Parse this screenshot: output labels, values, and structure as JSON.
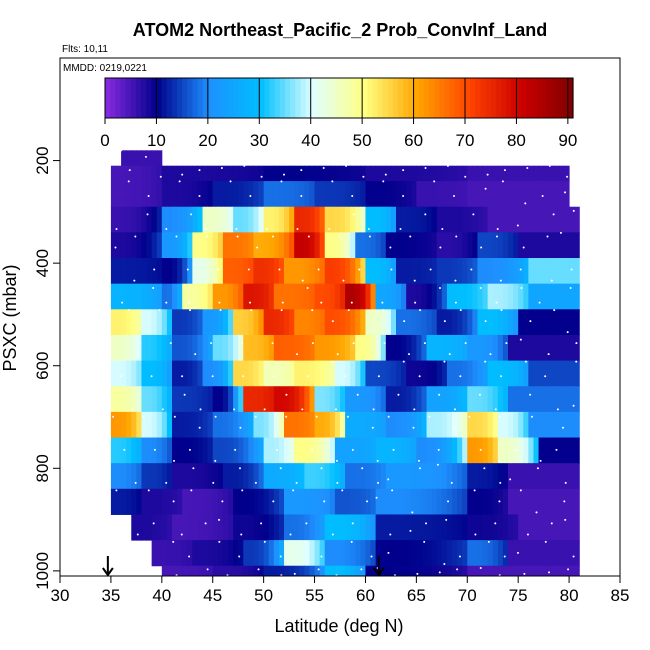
{
  "chart_data": {
    "type": "heatmap",
    "title": "ATOM2 Northeast_Pacific_2 Prob_ConvInf_Land",
    "annotations": [
      "Flts: 10,11",
      "MMDD: 0219,0221"
    ],
    "xlabel": "Latitude (deg N)",
    "ylabel": "PSXC (mbar)",
    "xlim": [
      30,
      85
    ],
    "ylim": [
      1010,
      0
    ],
    "x_ticks": [
      "30",
      "35",
      "40",
      "45",
      "50",
      "55",
      "60",
      "65",
      "70",
      "75",
      "80",
      "85"
    ],
    "y_ticks": [
      "200",
      "400",
      "600",
      "800",
      "1000"
    ],
    "colorbar": {
      "range": [
        0,
        91
      ],
      "ticks": [
        "0",
        "10",
        "20",
        "30",
        "40",
        "50",
        "60",
        "70",
        "80",
        "90"
      ],
      "colors": [
        "#8a2be2",
        "#00008b",
        "#1e90ff",
        "#00bfff",
        "#e0ffff",
        "#ffff80",
        "#ffa500",
        "#ff4500",
        "#cc0000",
        "#800000"
      ]
    },
    "arrow_markers_lat": [
      34.7,
      61.3
    ],
    "pressure_levels": [
      180,
      210,
      240,
      290,
      340,
      390,
      440,
      490,
      540,
      590,
      640,
      690,
      740,
      790,
      840,
      890,
      940,
      990
    ],
    "rows": [
      {
        "p": 180,
        "segments": [
          [
            36,
            40,
            6
          ]
        ]
      },
      {
        "p": 210,
        "segments": [
          [
            35,
            40,
            5
          ],
          [
            40,
            50,
            8
          ],
          [
            50,
            60,
            10
          ],
          [
            60,
            70,
            8
          ],
          [
            70,
            80,
            6
          ]
        ]
      },
      {
        "p": 240,
        "segments": [
          [
            35,
            40,
            5
          ],
          [
            40,
            45,
            8
          ],
          [
            45,
            50,
            12
          ],
          [
            50,
            55,
            18
          ],
          [
            55,
            60,
            14
          ],
          [
            60,
            65,
            10
          ],
          [
            65,
            70,
            6
          ],
          [
            70,
            80,
            5
          ]
        ]
      },
      {
        "p": 290,
        "segments": [
          [
            35,
            40,
            6
          ],
          [
            40,
            44,
            20
          ],
          [
            44,
            47,
            45
          ],
          [
            47,
            50,
            35
          ],
          [
            50,
            53,
            52
          ],
          [
            53,
            56,
            75
          ],
          [
            56,
            60,
            55
          ],
          [
            60,
            63,
            30
          ],
          [
            63,
            67,
            12
          ],
          [
            67,
            72,
            8
          ],
          [
            72,
            81,
            5
          ]
        ]
      },
      {
        "p": 340,
        "segments": [
          [
            35,
            40,
            8
          ],
          [
            40,
            43,
            22
          ],
          [
            43,
            46,
            50
          ],
          [
            46,
            49,
            66
          ],
          [
            49,
            53,
            60
          ],
          [
            53,
            56,
            82
          ],
          [
            56,
            59,
            50
          ],
          [
            59,
            62,
            18
          ],
          [
            62,
            67,
            10
          ],
          [
            67,
            71,
            7
          ],
          [
            71,
            75,
            15
          ],
          [
            75,
            81,
            8
          ]
        ]
      },
      {
        "p": 390,
        "segments": [
          [
            35,
            40,
            12
          ],
          [
            40,
            43,
            10
          ],
          [
            43,
            46,
            42
          ],
          [
            46,
            49,
            68
          ],
          [
            49,
            52,
            74
          ],
          [
            52,
            56,
            62
          ],
          [
            56,
            60,
            72
          ],
          [
            60,
            63,
            30
          ],
          [
            63,
            67,
            12
          ],
          [
            67,
            71,
            14
          ],
          [
            71,
            76,
            20
          ],
          [
            76,
            81,
            35
          ]
        ]
      },
      {
        "p": 440,
        "segments": [
          [
            35,
            40,
            28
          ],
          [
            40,
            42,
            18
          ],
          [
            42,
            45,
            48
          ],
          [
            45,
            48,
            62
          ],
          [
            48,
            51,
            78
          ],
          [
            51,
            55,
            66
          ],
          [
            55,
            58,
            70
          ],
          [
            58,
            61,
            85
          ],
          [
            61,
            64,
            25
          ],
          [
            64,
            68,
            8
          ],
          [
            68,
            72,
            30
          ],
          [
            72,
            76,
            38
          ],
          [
            76,
            81,
            25
          ]
        ]
      },
      {
        "p": 490,
        "segments": [
          [
            35,
            38,
            52
          ],
          [
            38,
            41,
            40
          ],
          [
            41,
            44,
            14
          ],
          [
            44,
            47,
            22
          ],
          [
            47,
            50,
            56
          ],
          [
            50,
            53,
            75
          ],
          [
            53,
            56,
            64
          ],
          [
            56,
            60,
            70
          ],
          [
            60,
            63,
            45
          ],
          [
            63,
            67,
            18
          ],
          [
            67,
            71,
            12
          ],
          [
            71,
            75,
            30
          ],
          [
            75,
            81,
            10
          ]
        ]
      },
      {
        "p": 540,
        "segments": [
          [
            35,
            38,
            45
          ],
          [
            38,
            41,
            32
          ],
          [
            41,
            45,
            16
          ],
          [
            45,
            48,
            35
          ],
          [
            48,
            51,
            58
          ],
          [
            51,
            55,
            68
          ],
          [
            55,
            59,
            62
          ],
          [
            59,
            62,
            50
          ],
          [
            62,
            66,
            10
          ],
          [
            66,
            70,
            28
          ],
          [
            70,
            74,
            22
          ],
          [
            74,
            81,
            8
          ]
        ]
      },
      {
        "p": 590,
        "segments": [
          [
            35,
            38,
            40
          ],
          [
            38,
            41,
            30
          ],
          [
            41,
            44,
            12
          ],
          [
            44,
            47,
            20
          ],
          [
            47,
            50,
            55
          ],
          [
            50,
            53,
            46
          ],
          [
            53,
            57,
            52
          ],
          [
            57,
            60,
            40
          ],
          [
            60,
            64,
            15
          ],
          [
            64,
            68,
            9
          ],
          [
            68,
            72,
            18
          ],
          [
            72,
            76,
            30
          ],
          [
            76,
            81,
            15
          ]
        ]
      },
      {
        "p": 640,
        "segments": [
          [
            35,
            38,
            48
          ],
          [
            38,
            41,
            35
          ],
          [
            41,
            45,
            14
          ],
          [
            45,
            48,
            10
          ],
          [
            48,
            51,
            75
          ],
          [
            51,
            55,
            80
          ],
          [
            55,
            58,
            36
          ],
          [
            58,
            62,
            22
          ],
          [
            62,
            66,
            12
          ],
          [
            66,
            70,
            24
          ],
          [
            70,
            74,
            35
          ],
          [
            74,
            81,
            18
          ]
        ]
      },
      {
        "p": 690,
        "segments": [
          [
            35,
            38,
            62
          ],
          [
            38,
            41,
            40
          ],
          [
            41,
            45,
            12
          ],
          [
            45,
            49,
            18
          ],
          [
            49,
            52,
            36
          ],
          [
            52,
            55,
            66
          ],
          [
            55,
            58,
            60
          ],
          [
            58,
            62,
            26
          ],
          [
            62,
            66,
            20
          ],
          [
            66,
            70,
            38
          ],
          [
            70,
            73,
            55
          ],
          [
            73,
            76,
            40
          ],
          [
            76,
            81,
            20
          ]
        ]
      },
      {
        "p": 740,
        "segments": [
          [
            35,
            38,
            32
          ],
          [
            38,
            41,
            20
          ],
          [
            41,
            45,
            10
          ],
          [
            45,
            50,
            15
          ],
          [
            50,
            53,
            38
          ],
          [
            53,
            57,
            50
          ],
          [
            57,
            61,
            24
          ],
          [
            61,
            65,
            28
          ],
          [
            65,
            70,
            20
          ],
          [
            70,
            73,
            62
          ],
          [
            73,
            77,
            45
          ],
          [
            77,
            81,
            10
          ]
        ]
      },
      {
        "p": 790,
        "segments": [
          [
            35,
            38,
            20
          ],
          [
            38,
            41,
            14
          ],
          [
            41,
            46,
            8
          ],
          [
            46,
            50,
            12
          ],
          [
            50,
            54,
            26
          ],
          [
            54,
            58,
            33
          ],
          [
            58,
            62,
            18
          ],
          [
            62,
            70,
            22
          ],
          [
            70,
            74,
            12
          ],
          [
            74,
            81,
            6
          ]
        ]
      },
      {
        "p": 840,
        "segments": [
          [
            35,
            38,
            12
          ],
          [
            38,
            42,
            8
          ],
          [
            42,
            47,
            5
          ],
          [
            47,
            52,
            10
          ],
          [
            52,
            57,
            22
          ],
          [
            57,
            61,
            16
          ],
          [
            61,
            70,
            20
          ],
          [
            70,
            74,
            10
          ],
          [
            74,
            81,
            5
          ]
        ]
      },
      {
        "p": 890,
        "segments": [
          [
            37,
            41,
            8
          ],
          [
            41,
            47,
            5
          ],
          [
            47,
            52,
            9
          ],
          [
            52,
            56,
            18
          ],
          [
            56,
            61,
            30
          ],
          [
            61,
            70,
            12
          ],
          [
            70,
            75,
            9
          ],
          [
            75,
            81,
            5
          ]
        ]
      },
      {
        "p": 940,
        "segments": [
          [
            39,
            43,
            6
          ],
          [
            43,
            48,
            8
          ],
          [
            48,
            52,
            14
          ],
          [
            52,
            56,
            42
          ],
          [
            56,
            61,
            20
          ],
          [
            61,
            70,
            10
          ],
          [
            70,
            74,
            18
          ],
          [
            74,
            81,
            6
          ]
        ]
      },
      {
        "p": 990,
        "segments": [
          [
            40,
            45,
            5
          ],
          [
            45,
            50,
            7
          ],
          [
            50,
            56,
            12
          ],
          [
            56,
            60,
            30
          ],
          [
            60,
            70,
            10
          ],
          [
            70,
            81,
            5
          ]
        ]
      }
    ]
  }
}
